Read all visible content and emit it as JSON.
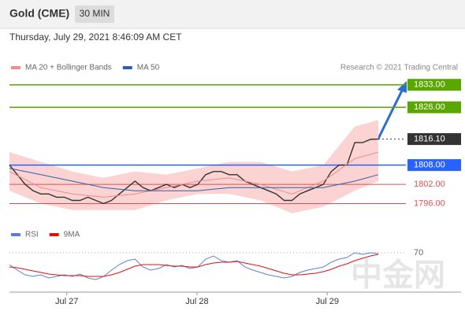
{
  "chart_data": [
    {
      "type": "line",
      "title": "Gold (CME)",
      "timeframe": "30 MIN",
      "subtitle": "Thursday, July 29, 2021 8:46:09 AM CET",
      "credit": "Research © 2021 Trading Central",
      "watermark": "中金网",
      "x": [
        0,
        1,
        2,
        3,
        4,
        5,
        6,
        7,
        8,
        9,
        10,
        11,
        12,
        13,
        14,
        15,
        16,
        17,
        18,
        19,
        20,
        21,
        22,
        23,
        24,
        25,
        26,
        27,
        28,
        29,
        30,
        31,
        32,
        33,
        34,
        35,
        36,
        37,
        38,
        39,
        40,
        41,
        42,
        43,
        44,
        45,
        46,
        47
      ],
      "xlim": [
        0,
        47
      ],
      "ylim": [
        1790,
        1842
      ],
      "series": [
        {
          "color": "#333333",
          "values": [
            1808,
            1805,
            1802,
            1800,
            1799,
            1799,
            1798,
            1798,
            1797,
            1797,
            1798,
            1797,
            1796,
            1797,
            1799,
            1801,
            1803,
            1801,
            1800,
            1801,
            1802,
            1801,
            1802,
            1801,
            1802,
            1805,
            1806,
            1806,
            1805,
            1805,
            1803,
            1802,
            1801,
            1800,
            1799,
            1797,
            1797,
            1799,
            1800,
            1801,
            1802,
            1806,
            1808,
            1808,
            1815,
            1815,
            1816,
            1816.1
          ]
        },
        {
          "name": "MA 20 + Bollinger Bands",
          "color": "#f28b8b",
          "band_color": "#fbd3d3",
          "x": [
            0,
            4,
            8,
            12,
            16,
            20,
            24,
            28,
            32,
            36,
            40,
            44,
            47
          ],
          "values": [
            1806,
            1801,
            1799,
            1798,
            1799,
            1801,
            1803,
            1804,
            1802,
            1799,
            1803,
            1810,
            1812
          ],
          "band_upper": [
            1812,
            1809,
            1806,
            1804,
            1806,
            1805,
            1807,
            1809,
            1809,
            1806,
            1808,
            1820,
            1822
          ],
          "band_lower": [
            1800,
            1796,
            1794,
            1794,
            1794,
            1797,
            1799,
            1799,
            1797,
            1793,
            1795,
            1800,
            1803
          ]
        },
        {
          "name": "MA 50",
          "color": "#2f5fa8",
          "x": [
            0,
            4,
            8,
            12,
            16,
            20,
            24,
            28,
            32,
            36,
            40,
            44,
            47
          ],
          "values": [
            1807,
            1805,
            1803,
            1801,
            1800,
            1800,
            1800,
            1801,
            1801,
            1801,
            1801,
            1803,
            1805
          ]
        }
      ],
      "levels": [
        {
          "value": 1833,
          "label": "1833.00",
          "color": "#5aa700",
          "box": true,
          "dotted": false
        },
        {
          "value": 1826,
          "label": "1826.00",
          "color": "#5aa700",
          "box": true,
          "dotted": false
        },
        {
          "value": 1816.1,
          "label": "1816.10",
          "color": "#333333",
          "box": true,
          "dotted": true
        },
        {
          "value": 1808,
          "label": "1808.00",
          "color": "#2962ff",
          "box": true,
          "dotted": false
        },
        {
          "value": 1802,
          "label": "1802.00",
          "color": "#e05050",
          "box": false,
          "dotted": false
        },
        {
          "value": 1796,
          "label": "1796.00",
          "color": "#e05050",
          "box": false,
          "dotted": false
        }
      ]
    },
    {
      "type": "line",
      "x": [
        0,
        1,
        2,
        3,
        4,
        5,
        6,
        7,
        8,
        9,
        10,
        11,
        12,
        13,
        14,
        15,
        16,
        17,
        18,
        19,
        20,
        21,
        22,
        23,
        24,
        25,
        26,
        27,
        28,
        29,
        30,
        31,
        32,
        33,
        34,
        35,
        36,
        37,
        38,
        39,
        40,
        41,
        42,
        43,
        44,
        45,
        46,
        47
      ],
      "xlim": [
        0,
        47
      ],
      "ylim": [
        20,
        80
      ],
      "yticks": [
        70
      ],
      "xticks": [
        {
          "value": 7.3,
          "label": "Jul 27"
        },
        {
          "value": 23.9,
          "label": "Jul 28"
        },
        {
          "value": 40.5,
          "label": "Jul 29"
        }
      ],
      "series": [
        {
          "name": "RSI",
          "color": "#5b7fd6",
          "values": [
            55,
            48,
            42,
            40,
            42,
            38,
            40,
            42,
            40,
            43,
            38,
            36,
            40,
            48,
            55,
            60,
            62,
            52,
            48,
            50,
            55,
            52,
            54,
            50,
            52,
            62,
            66,
            60,
            58,
            60,
            52,
            48,
            45,
            42,
            40,
            38,
            40,
            45,
            48,
            50,
            52,
            58,
            62,
            64,
            70,
            68,
            70,
            69
          ]
        },
        {
          "name": "9MA",
          "color": "#e01010",
          "values": [
            52,
            51,
            49,
            47,
            45,
            43,
            42,
            41,
            41,
            41,
            40,
            40,
            40,
            42,
            45,
            49,
            53,
            55,
            55,
            55,
            54,
            53,
            53,
            52,
            52,
            55,
            57,
            58,
            58,
            59,
            57,
            55,
            53,
            50,
            47,
            44,
            42,
            42,
            43,
            44,
            46,
            49,
            53,
            56,
            60,
            63,
            66,
            68
          ]
        }
      ]
    }
  ]
}
